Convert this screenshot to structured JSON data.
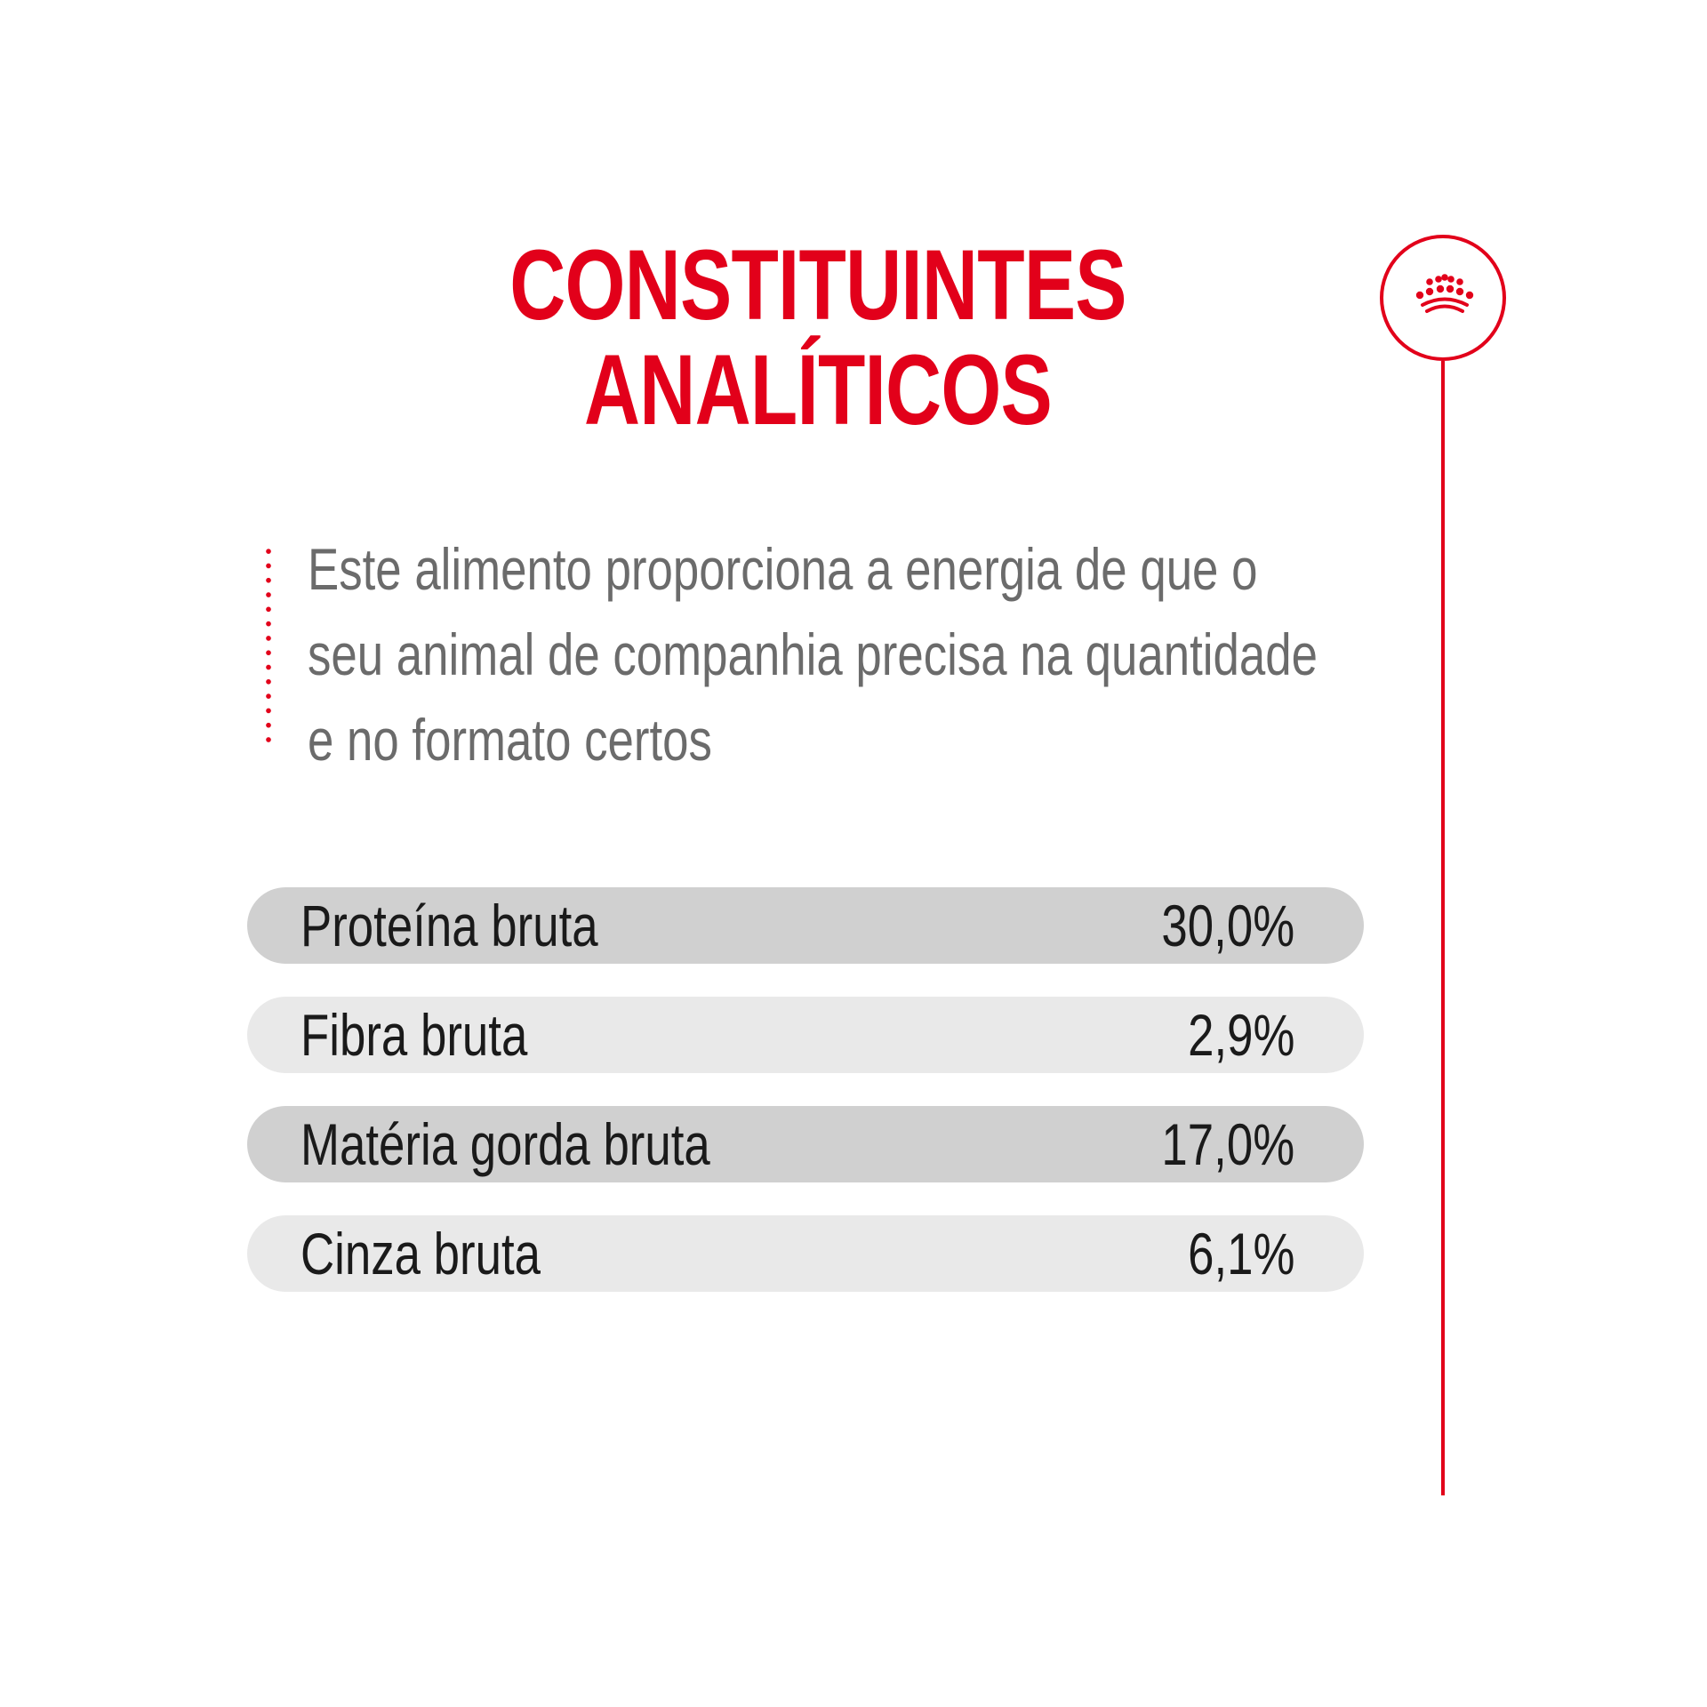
{
  "header": {
    "title_line1": "CONSTITUINTES",
    "title_line2": "ANALÍTICOS"
  },
  "logo": {
    "icon": "crown-icon"
  },
  "description": {
    "line1": "Este alimento proporciona a energia de que o",
    "line2": "seu animal de companhia precisa na quantidade",
    "line3": "e no formato certos"
  },
  "nutrients": [
    {
      "label": "Proteína bruta",
      "value": "30,0%"
    },
    {
      "label": "Fibra bruta",
      "value": "2,9%"
    },
    {
      "label": "Matéria gorda bruta",
      "value": "17,0%"
    },
    {
      "label": "Cinza bruta",
      "value": "6,1%"
    }
  ],
  "colors": {
    "accent": "#e2001a",
    "text_gray": "#6b6b6b",
    "row_dark": "#d0d0d0",
    "row_light": "#e9e9e9"
  }
}
